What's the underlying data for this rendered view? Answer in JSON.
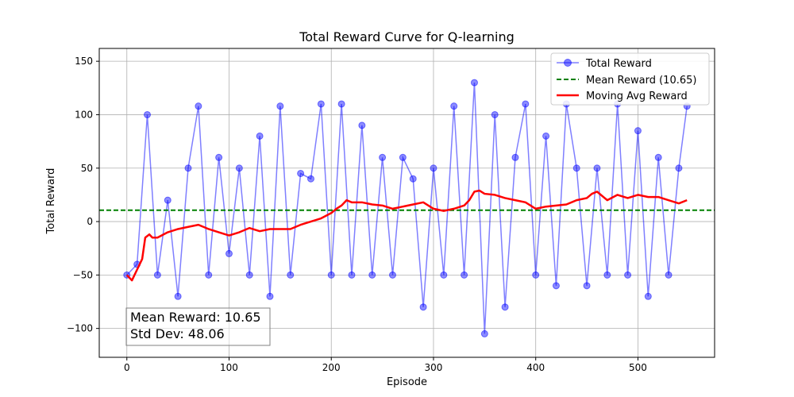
{
  "chart_data": {
    "type": "line",
    "title": "Total Reward Curve for Q-learning",
    "xlabel": "Episode",
    "ylabel": "Total Reward",
    "xlim": [
      -27,
      575
    ],
    "ylim": [
      -127,
      162
    ],
    "xticks": [
      0,
      100,
      200,
      300,
      400,
      500
    ],
    "yticks": [
      -100,
      -50,
      0,
      50,
      100,
      150
    ],
    "grid": true,
    "legend_position": "top-right",
    "series": [
      {
        "name": "Total Reward",
        "style": "line-with-circle-markers",
        "color": "#0000ff",
        "x": [
          0,
          10,
          20,
          30,
          40,
          50,
          60,
          70,
          80,
          90,
          100,
          110,
          120,
          130,
          140,
          150,
          160,
          170,
          180,
          190,
          200,
          210,
          220,
          230,
          240,
          250,
          260,
          270,
          280,
          290,
          300,
          310,
          320,
          330,
          340,
          350,
          360,
          370,
          380,
          390,
          400,
          410,
          420,
          430,
          440,
          450,
          460,
          470,
          480,
          490,
          500,
          510,
          520,
          530,
          540,
          548
        ],
        "values": [
          -50,
          -40,
          100,
          -50,
          20,
          -70,
          50,
          108,
          -50,
          60,
          -30,
          50,
          -50,
          80,
          -70,
          108,
          -50,
          45,
          40,
          110,
          -50,
          110,
          -50,
          90,
          -50,
          60,
          -50,
          60,
          40,
          -80,
          50,
          -50,
          108,
          -50,
          130,
          -105,
          100,
          -80,
          60,
          110,
          -50,
          80,
          -60,
          110,
          50,
          -60,
          50,
          -50,
          110,
          -50,
          85,
          -70,
          60,
          -50,
          50,
          108
        ]
      },
      {
        "name": "Mean Reward (10.65)",
        "style": "dashed-horizontal",
        "color": "#008000",
        "value": 10.65
      },
      {
        "name": "Moving Avg Reward",
        "style": "line",
        "color": "#ff0000",
        "x": [
          0,
          5,
          10,
          15,
          18,
          22,
          25,
          30,
          40,
          50,
          60,
          70,
          80,
          90,
          100,
          110,
          120,
          130,
          140,
          150,
          160,
          170,
          180,
          190,
          200,
          205,
          210,
          215,
          220,
          230,
          240,
          250,
          260,
          270,
          280,
          290,
          300,
          310,
          320,
          330,
          335,
          340,
          345,
          350,
          360,
          370,
          380,
          390,
          400,
          410,
          420,
          430,
          440,
          450,
          455,
          460,
          470,
          480,
          490,
          500,
          510,
          520,
          530,
          540,
          548
        ],
        "values": [
          -50,
          -55,
          -45,
          -35,
          -15,
          -12,
          -15,
          -15,
          -10,
          -7,
          -5,
          -3,
          -7,
          -10,
          -13,
          -10,
          -6,
          -9,
          -7,
          -7,
          -7,
          -3,
          0,
          3,
          8,
          12,
          15,
          20,
          18,
          18,
          16,
          15,
          12,
          14,
          16,
          18,
          12,
          10,
          12,
          15,
          20,
          28,
          29,
          26,
          25,
          22,
          20,
          18,
          12,
          14,
          15,
          16,
          20,
          22,
          26,
          28,
          20,
          25,
          22,
          25,
          23,
          23,
          20,
          17,
          20
        ]
      }
    ],
    "annotation": {
      "mean_text": "Mean Reward: 10.65",
      "std_text": "Std Dev: 48.06"
    }
  }
}
